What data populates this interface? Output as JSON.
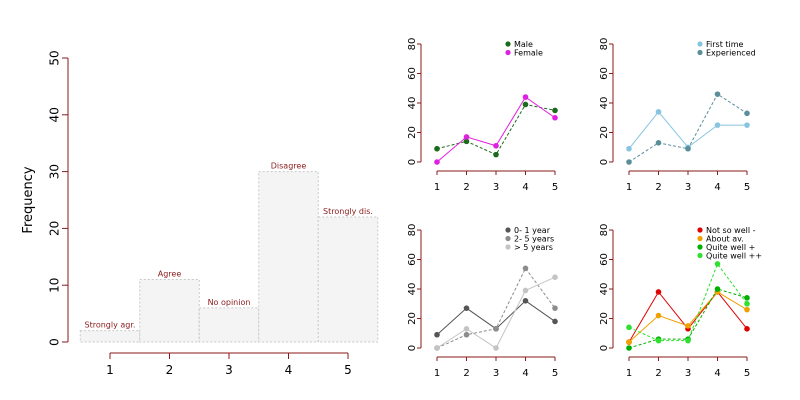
{
  "chart_data": [
    {
      "type": "bar",
      "ylabel": "Frequency",
      "categories": [
        "1",
        "2",
        "3",
        "4",
        "5"
      ],
      "values": [
        2,
        11,
        6,
        30,
        22
      ],
      "bar_labels": [
        "Strongly agr.",
        "Agree",
        "No opinion",
        "Disagree",
        "Strongly dis."
      ],
      "ylim": [
        0,
        50
      ],
      "yticks": [
        "0",
        "10",
        "20",
        "30",
        "40",
        "50"
      ],
      "colors": {
        "fill": "#f4f4f4",
        "border": "#c8c8c8",
        "axis": "#8b1a1a",
        "bar_label": "#8b1a1a"
      }
    },
    {
      "type": "line",
      "x": [
        "1",
        "2",
        "3",
        "4",
        "5"
      ],
      "ylim": [
        0,
        80
      ],
      "yticks": [
        "0",
        "20",
        "40",
        "60",
        "80"
      ],
      "legend_position": "top-right",
      "series": [
        {
          "name": "Male",
          "values": [
            9,
            14,
            5,
            39,
            35
          ],
          "color": "#1a6b1a",
          "dashed": true
        },
        {
          "name": "Female",
          "values": [
            0,
            17,
            11,
            44,
            30
          ],
          "color": "#e020e0",
          "dashed": false
        }
      ]
    },
    {
      "type": "line",
      "x": [
        "1",
        "2",
        "3",
        "4",
        "5"
      ],
      "ylim": [
        0,
        80
      ],
      "yticks": [
        "0",
        "20",
        "40",
        "60",
        "80"
      ],
      "legend_position": "top-right",
      "series": [
        {
          "name": "First time",
          "values": [
            9,
            34,
            10,
            25,
            25
          ],
          "color": "#87c4e0",
          "dashed": false
        },
        {
          "name": "Experienced",
          "values": [
            0,
            13,
            9,
            46,
            33
          ],
          "color": "#5a8f9a",
          "dashed": true
        }
      ]
    },
    {
      "type": "line",
      "x": [
        "1",
        "2",
        "3",
        "4",
        "5"
      ],
      "ylim": [
        0,
        80
      ],
      "yticks": [
        "0",
        "20",
        "40",
        "60",
        "80"
      ],
      "legend_position": "top-right",
      "series": [
        {
          "name": "0- 1 year",
          "values": [
            9,
            27,
            13,
            32,
            18
          ],
          "color": "#555555",
          "dashed": false
        },
        {
          "name": "2- 5 years",
          "values": [
            0,
            9,
            13,
            54,
            27
          ],
          "color": "#8c8c8c",
          "dashed": true
        },
        {
          "name": "> 5 years",
          "values": [
            0,
            13,
            0,
            39,
            48
          ],
          "color": "#c4c4c4",
          "dashed": false
        }
      ]
    },
    {
      "type": "line",
      "x": [
        "1",
        "2",
        "3",
        "4",
        "5"
      ],
      "ylim": [
        0,
        80
      ],
      "yticks": [
        "0",
        "20",
        "40",
        "60",
        "80"
      ],
      "legend_position": "top-right",
      "series": [
        {
          "name": "Not so well -",
          "values": [
            4,
            38,
            13,
            38,
            13
          ],
          "color": "#e00000",
          "dashed": false
        },
        {
          "name": "About av.",
          "values": [
            4,
            22,
            15,
            38,
            26
          ],
          "color": "#f0a000",
          "dashed": false
        },
        {
          "name": "Quite well +",
          "values": [
            0,
            6,
            6,
            40,
            34
          ],
          "color": "#00b000",
          "dashed": true
        },
        {
          "name": "Quite well ++",
          "values": [
            14,
            5,
            5,
            57,
            30
          ],
          "color": "#30e030",
          "dashed": true
        }
      ]
    }
  ]
}
